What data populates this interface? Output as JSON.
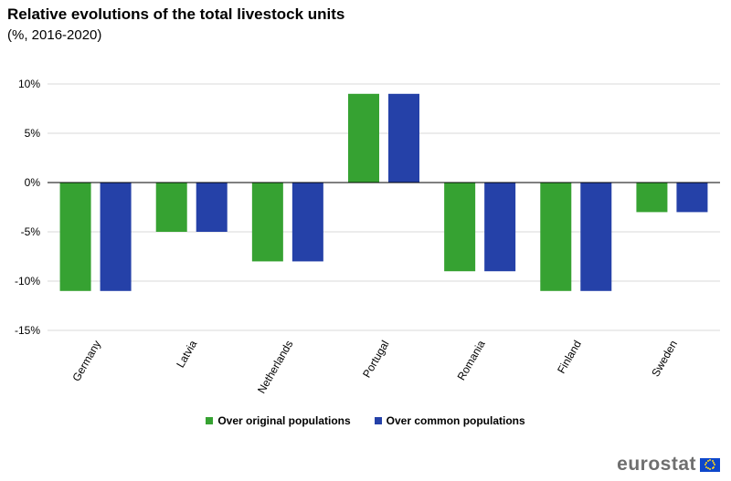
{
  "header": {
    "title": "Relative evolutions of the total livestock units",
    "subtitle": "(%, 2016-2020)"
  },
  "logo": {
    "text": "eurostat",
    "flag_icon": "eu-flag-icon"
  },
  "colors": {
    "series1": "#36a232",
    "series2": "#2541a8",
    "grid": "#d9d9d9",
    "axis": "#000000"
  },
  "chart_data": {
    "type": "bar",
    "title": "Relative evolutions of the total livestock units",
    "subtitle": "(%, 2016-2020)",
    "xlabel": "",
    "ylabel": "",
    "categories": [
      "Germany",
      "Latvia",
      "Netherlands",
      "Portugal",
      "Romania",
      "Finland",
      "Sweden"
    ],
    "series": [
      {
        "name": "Over original populations",
        "values": [
          -11,
          -5,
          -8,
          9,
          -9,
          -11,
          -3
        ]
      },
      {
        "name": "Over common populations",
        "values": [
          -11,
          -5,
          -8,
          9,
          -9,
          -11,
          -3
        ]
      }
    ],
    "ylim": [
      -15,
      10
    ],
    "yticks": [
      10,
      5,
      0,
      -5,
      -10,
      -15
    ],
    "ytick_labels": [
      "10%",
      "5%",
      "0%",
      "-5%",
      "-10%",
      "-15%"
    ],
    "grid": true,
    "legend_position": "bottom"
  }
}
